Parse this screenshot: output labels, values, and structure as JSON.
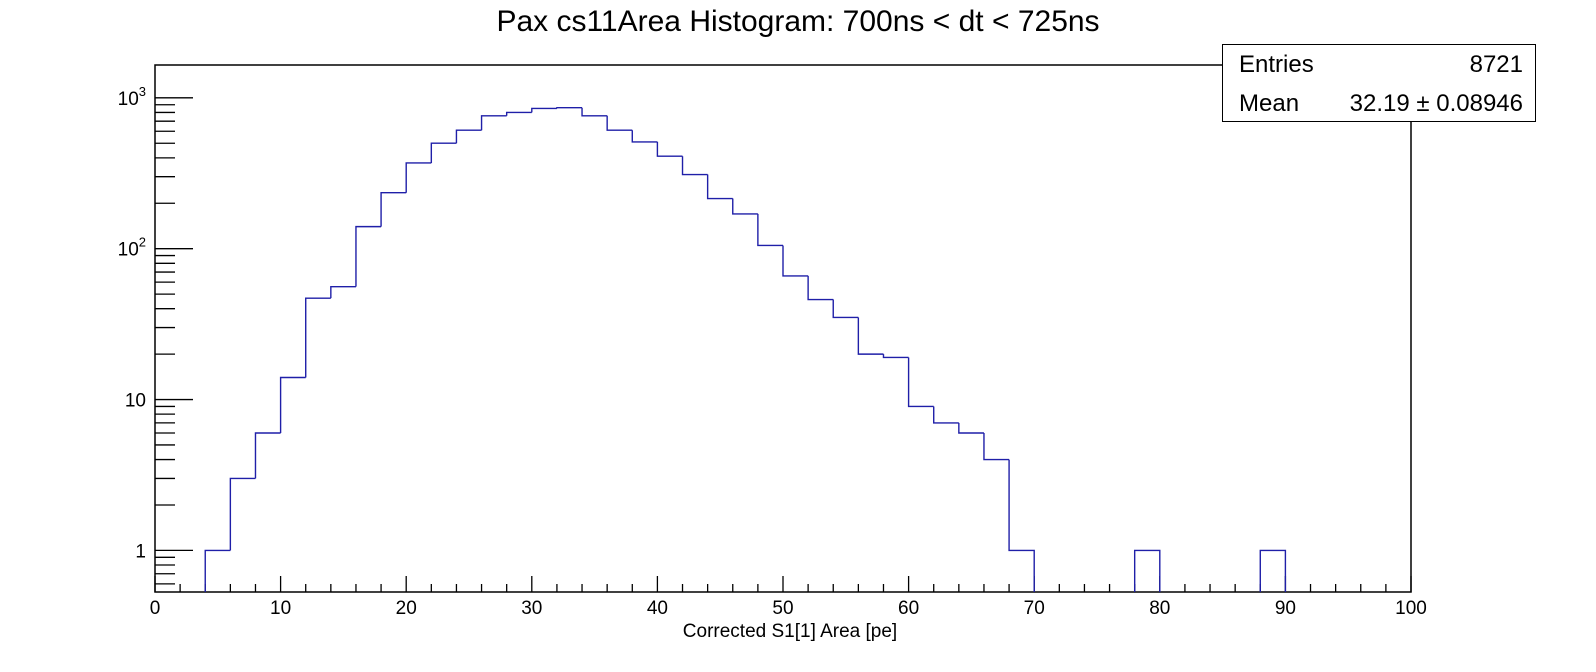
{
  "chart_data": {
    "type": "bar",
    "title": "Pax cs11Area Histogram: 700ns < dt < 725ns",
    "xlabel": "Corrected S1[1] Area [pe]",
    "ylabel": "",
    "xlim": [
      0,
      100
    ],
    "ylim": [
      0.53,
      1650
    ],
    "y_scale": "log",
    "grid": false,
    "bin_width": 2,
    "line_color": "#1f1fa8",
    "x_tick_labels": [
      "0",
      "10",
      "20",
      "30",
      "40",
      "50",
      "60",
      "70",
      "80",
      "90",
      "100"
    ],
    "y_tick_labels": [
      {
        "value": 1,
        "base": "1",
        "exp": ""
      },
      {
        "value": 10,
        "base": "10",
        "exp": ""
      },
      {
        "value": 100,
        "base": "10",
        "exp": "2"
      },
      {
        "value": 1000,
        "base": "10",
        "exp": "3"
      }
    ],
    "bins": [
      {
        "x": 4,
        "count": 1
      },
      {
        "x": 6,
        "count": 3
      },
      {
        "x": 8,
        "count": 6
      },
      {
        "x": 10,
        "count": 14
      },
      {
        "x": 12,
        "count": 47
      },
      {
        "x": 14,
        "count": 56
      },
      {
        "x": 16,
        "count": 140
      },
      {
        "x": 18,
        "count": 235
      },
      {
        "x": 20,
        "count": 370
      },
      {
        "x": 22,
        "count": 500
      },
      {
        "x": 24,
        "count": 610
      },
      {
        "x": 26,
        "count": 760
      },
      {
        "x": 28,
        "count": 800
      },
      {
        "x": 30,
        "count": 850
      },
      {
        "x": 32,
        "count": 860
      },
      {
        "x": 34,
        "count": 760
      },
      {
        "x": 36,
        "count": 610
      },
      {
        "x": 38,
        "count": 510
      },
      {
        "x": 40,
        "count": 410
      },
      {
        "x": 42,
        "count": 310
      },
      {
        "x": 44,
        "count": 215
      },
      {
        "x": 46,
        "count": 170
      },
      {
        "x": 48,
        "count": 105
      },
      {
        "x": 50,
        "count": 66
      },
      {
        "x": 52,
        "count": 46
      },
      {
        "x": 54,
        "count": 35
      },
      {
        "x": 56,
        "count": 20
      },
      {
        "x": 58,
        "count": 19
      },
      {
        "x": 60,
        "count": 9
      },
      {
        "x": 62,
        "count": 7
      },
      {
        "x": 64,
        "count": 6
      },
      {
        "x": 66,
        "count": 4
      },
      {
        "x": 68,
        "count": 1
      },
      {
        "x": 78,
        "count": 1
      },
      {
        "x": 88,
        "count": 1
      }
    ],
    "stats": {
      "entries_label": "Entries",
      "entries_value": "8721",
      "mean_label": "Mean",
      "mean_value": "32.19 ± 0.08946"
    }
  }
}
